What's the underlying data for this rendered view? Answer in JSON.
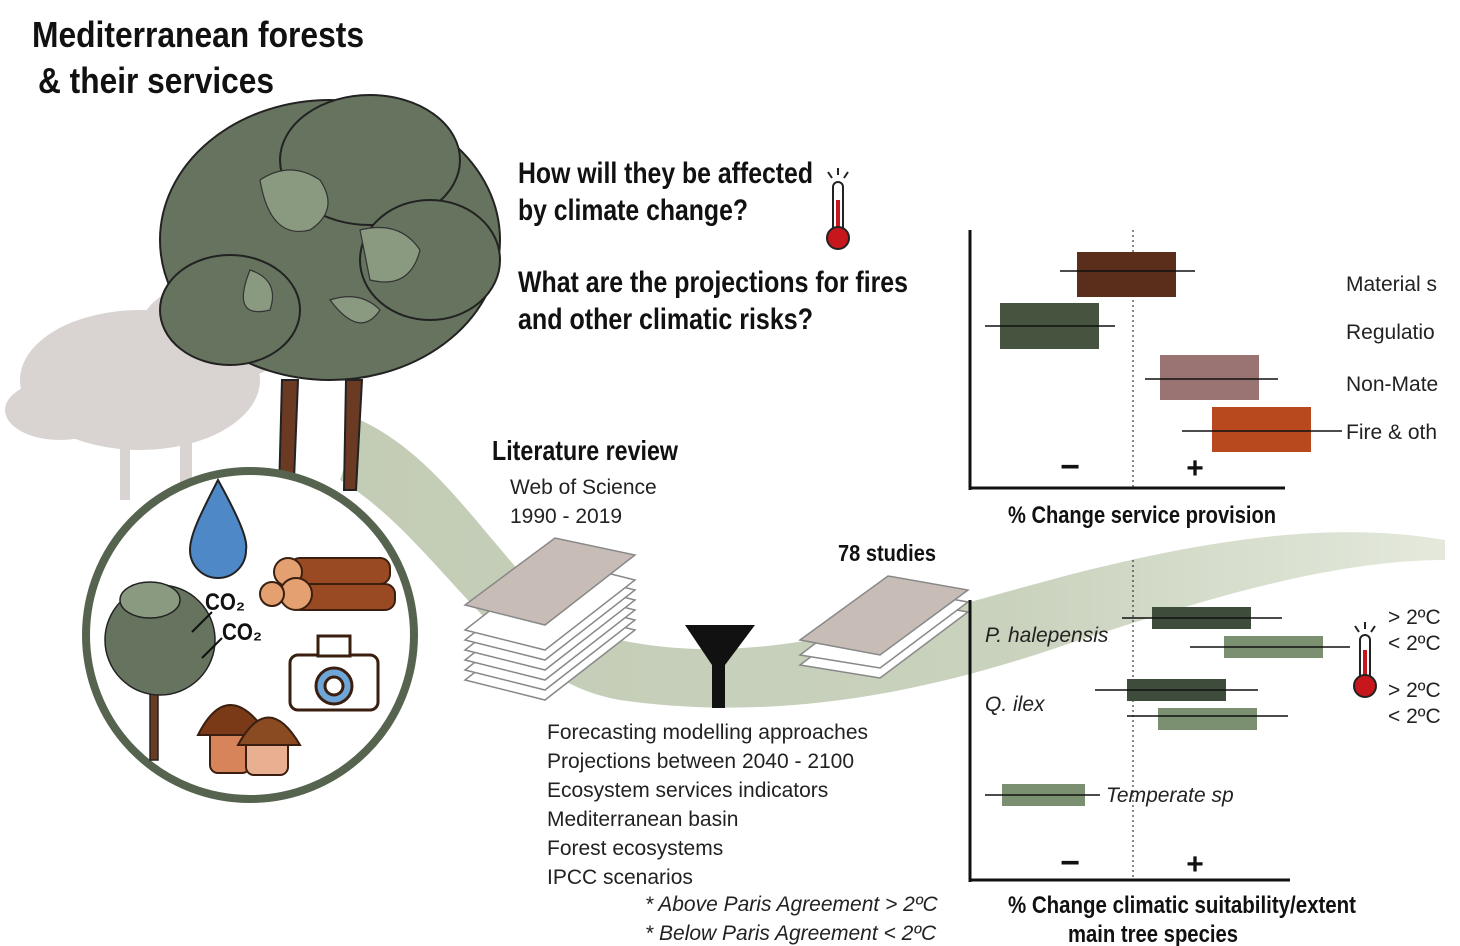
{
  "header": {
    "title": [
      "Mediterranean forests",
      "& their services"
    ]
  },
  "questions": [
    "How will they be affected",
    "by climate change?",
    "What are the projections for fires",
    "and other climatic risks?"
  ],
  "literature": {
    "title": "Literature review",
    "source": "Web of Science",
    "period": "1990 - 2019"
  },
  "studies": "78 studies",
  "icons": {
    "co2": [
      "CO₂",
      "CO₂"
    ]
  },
  "criteria": [
    "Forecasting modelling approaches",
    "Projections between 2040 - 2100",
    "Ecosystem services indicators",
    "Mediterranean basin",
    "Forest ecosystems",
    "IPCC scenarios"
  ],
  "notes": [
    "* Above Paris Agreement > 2ºC",
    "* Below Paris Agreement < 2ºC"
  ],
  "service_panel": {
    "labels": [
      "Material s",
      "Regulatio",
      "Non-Mate",
      "Fire & oth"
    ],
    "minus": "−",
    "plus": "+",
    "axis_title": "% Change service provision"
  },
  "species_panel": {
    "species": [
      "P. halepensis",
      "Q. ilex",
      "Temperate sp"
    ],
    "scenarios": [
      "> 2ºC",
      "< 2ºC",
      "> 2ºC",
      "< 2ºC"
    ],
    "minus": "−",
    "plus": "+",
    "axis_title": [
      "% Change climatic suitability/extent",
      "main tree species"
    ]
  }
}
